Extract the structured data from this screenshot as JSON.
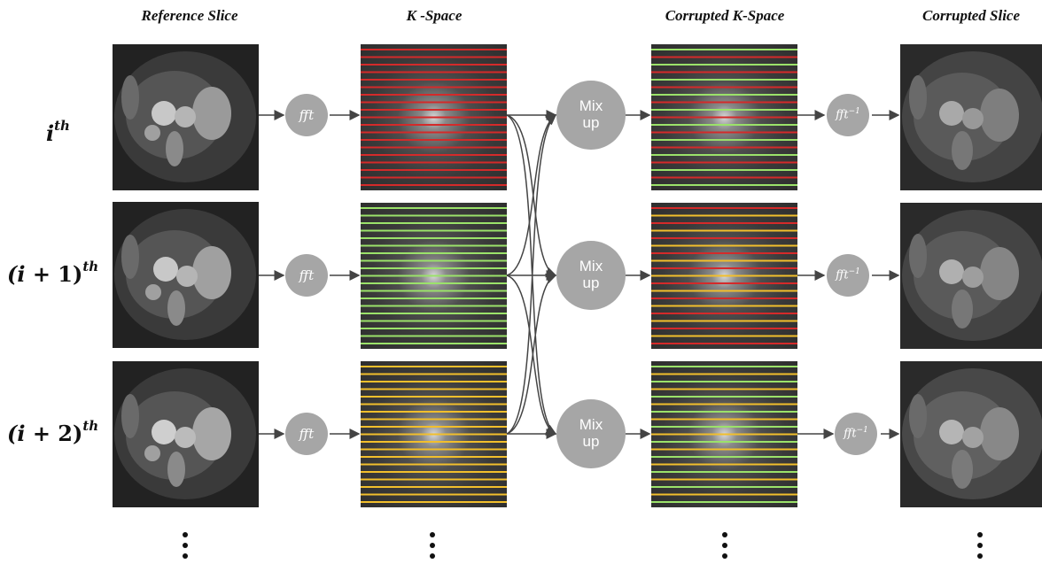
{
  "headers": {
    "reference": "Reference Slice",
    "kspace": "K -Space",
    "corrupted_kspace": "Corrupted K-Space",
    "corrupted_slice": "Corrupted Slice"
  },
  "rows": [
    {
      "label_var": "i",
      "label_rest": "",
      "label_sup": "th"
    },
    {
      "label_var": "(i",
      "label_rest": " + 1)",
      "label_sup": "th"
    },
    {
      "label_var": "(i",
      "label_rest": " + 2)",
      "label_sup": "th"
    }
  ],
  "nodes": {
    "fft": "fft",
    "ifft_base": "fft",
    "ifft_sup": "−1",
    "mix_line1": "Mix",
    "mix_line2": "up"
  },
  "colors": {
    "red": "#d42a2a",
    "green": "#9be26a",
    "yellow": "#f2bf2c",
    "node": "#a6a6a6",
    "arrow": "#444444"
  },
  "kspace_lines": {
    "kspace_1": [
      "red"
    ],
    "kspace_2": [
      "green"
    ],
    "kspace_3": [
      "yellow"
    ],
    "corrupted_1": [
      "green",
      "red"
    ],
    "corrupted_2": [
      "red",
      "yellow"
    ],
    "corrupted_3": [
      "green",
      "yellow"
    ]
  }
}
